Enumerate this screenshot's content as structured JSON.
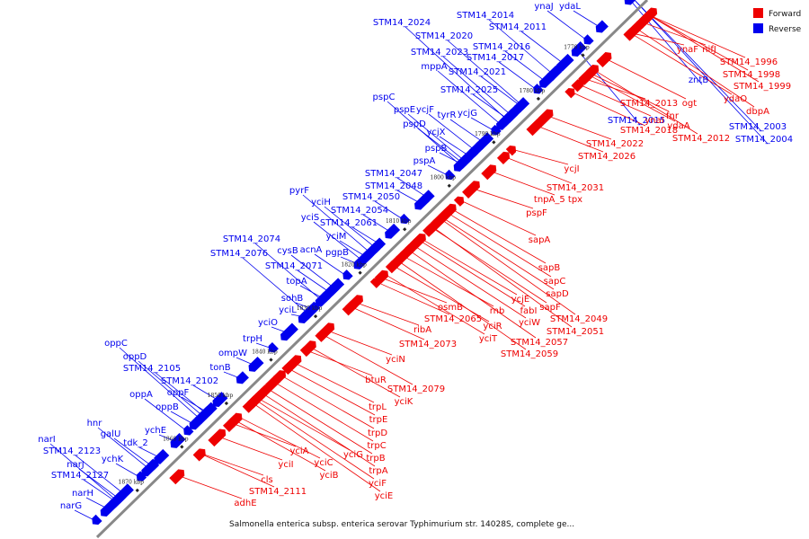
{
  "caption": "Salmonella enterica subsp. enterica serovar Typhimurium str. 14028S, complete ge...",
  "legend": [
    {
      "label": "Forward",
      "color": "#ee0000"
    },
    {
      "label": "Reverse",
      "color": "#0000ee"
    }
  ],
  "colors": {
    "forward": "#ee0000",
    "reverse": "#0000ee",
    "axis": "#888888"
  },
  "ticks": [
    "1770 kbp",
    "1780 kbp",
    "1790 kbp",
    "1800 kbp",
    "1810 kbp",
    "1820 kbp",
    "1830 kbp",
    "1840 kbp",
    "1850 kbp",
    "1860 kbp",
    "1870 kbp"
  ],
  "reverse_genes": [
    "ynaJ",
    "ydaL",
    "STM14_2014",
    "STM14_2011",
    "STM14_2024",
    "STM14_2020",
    "STM14_2016",
    "STM14_2023",
    "STM14_2017",
    "mppA",
    "STM14_2021",
    "STM14_2025",
    "pspC",
    "pspE",
    "ycjF",
    "tyrR",
    "ycjG",
    "pspD",
    "ycjX",
    "pspB",
    "pspA",
    "STM14_2047",
    "STM14_2048",
    "pyrF",
    "STM14_2050",
    "yciH",
    "STM14_2054",
    "yciS",
    "STM14_2061",
    "yciM",
    "STM14_2074",
    "cysB",
    "acnA",
    "pgpB",
    "STM14_2076",
    "STM14_2071",
    "topA",
    "sohB",
    "yciL",
    "yciO",
    "trpH",
    "oppC",
    "ompW",
    "oppD",
    "STM14_2105",
    "tonB",
    "STM14_2102",
    "oppF",
    "oppA",
    "oppB",
    "ychE",
    "hnr",
    "galU",
    "narI",
    "tdk_2",
    "STM14_2123",
    "ychK",
    "narJ",
    "STM14_2127",
    "narH",
    "narG",
    "zntB",
    "STM14_2015",
    "STM14_2003",
    "STM14_2004"
  ],
  "forward_genes": [
    "nifJ",
    "ynaF",
    "STM14_1996",
    "STM14_1998",
    "STM14_1999",
    "ydaO",
    "ogt",
    "dbpA",
    "STM14_2013",
    "ynaI",
    "fnr",
    "ydaA",
    "STM14_2018",
    "STM14_2012",
    "STM14_2022",
    "STM14_2026",
    "ycjI",
    "STM14_2031",
    "tnpA_5",
    "tpx",
    "pspF",
    "sapA",
    "sapB",
    "sapC",
    "sapD",
    "sapF",
    "ycjE",
    "fabI",
    "STM14_2049",
    "osmB",
    "rnb",
    "yciW",
    "STM14_2051",
    "STM14_2065",
    "yciR",
    "STM14_2057",
    "ribA",
    "yciT",
    "STM14_2059",
    "STM14_2073",
    "yciN",
    "btuR",
    "STM14_2079",
    "yciK",
    "trpL",
    "trpE",
    "trpD",
    "trpC",
    "yciG",
    "trpB",
    "trpA",
    "yciA",
    "yciI",
    "yciC",
    "yciB",
    "yciF",
    "yciE",
    "cls",
    "STM14_2111",
    "adhE"
  ]
}
